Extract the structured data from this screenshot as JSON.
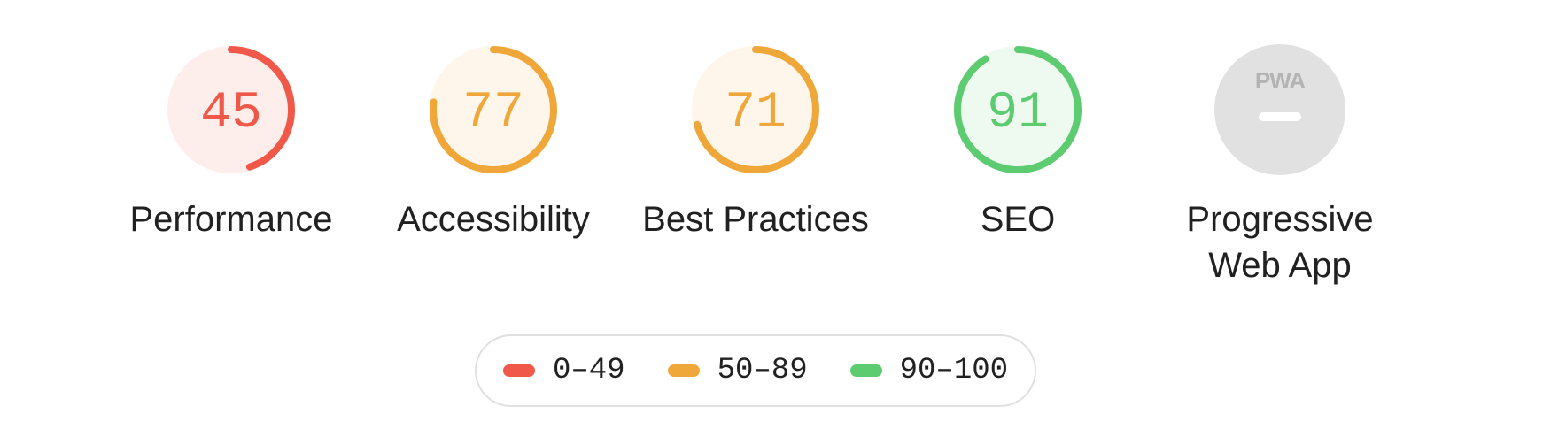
{
  "colors": {
    "fail": "#f0594a",
    "fail_bg": "#fdeeec",
    "average": "#f0a73a",
    "average_bg": "#fef5eb",
    "pass": "#5dcb70",
    "pass_bg": "#eefaf0",
    "pwa_bg": "#e1e1e1",
    "pwa_fg": "#b3b3b3"
  },
  "gauges": [
    {
      "label": "Performance",
      "score": 45,
      "value_text": "45",
      "status": "fail",
      "icon": "score-ring"
    },
    {
      "label": "Accessibility",
      "score": 77,
      "value_text": "77",
      "status": "average",
      "icon": "score-ring"
    },
    {
      "label": "Best Practices",
      "score": 71,
      "value_text": "71",
      "status": "average",
      "icon": "score-ring"
    },
    {
      "label": "SEO",
      "score": 91,
      "value_text": "91",
      "status": "pass",
      "icon": "score-ring"
    }
  ],
  "pwa": {
    "label_line1": "Progressive",
    "label_line2": "Web App",
    "badge_text": "PWA",
    "icon": "pwa-badge-icon"
  },
  "legend": [
    {
      "range": "0–49",
      "status": "fail"
    },
    {
      "range": "50–89",
      "status": "average"
    },
    {
      "range": "90–100",
      "status": "pass"
    }
  ]
}
